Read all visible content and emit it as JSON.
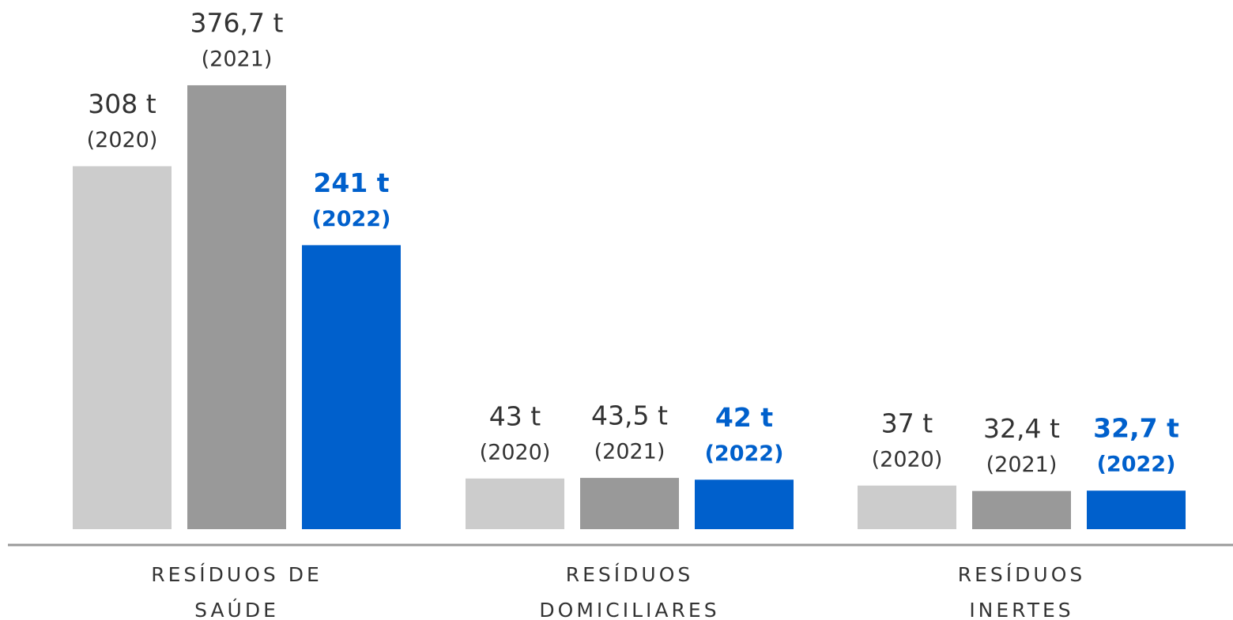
{
  "chart_data": {
    "type": "bar",
    "categories": [
      [
        "RESÍDUOS DE",
        "SAÚDE"
      ],
      [
        "RESÍDUOS",
        "DOMICILIARES"
      ],
      [
        "RESÍDUOS",
        "INERTES"
      ]
    ],
    "series": [
      {
        "name": "(2020)",
        "color": "#cccccc",
        "values": [
          308,
          43,
          37
        ],
        "value_labels": [
          "308 t",
          "43 t",
          "37 t"
        ]
      },
      {
        "name": "(2021)",
        "color": "#999999",
        "values": [
          376.7,
          43.5,
          32.4
        ],
        "value_labels": [
          "376,7 t",
          "43,5 t",
          "32,4 t"
        ]
      },
      {
        "name": "(2022)",
        "color": "#0060cc",
        "highlight": true,
        "values": [
          241,
          42,
          32.7
        ],
        "value_labels": [
          "241 t",
          "42 t",
          "32,7 t"
        ]
      }
    ]
  }
}
